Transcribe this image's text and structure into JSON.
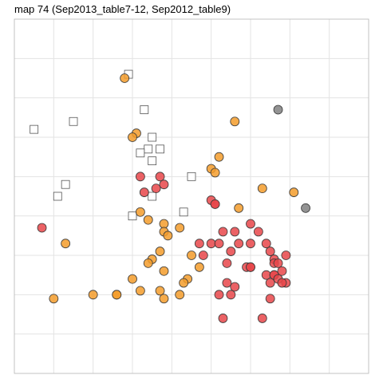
{
  "chart_data": {
    "type": "scatter",
    "title": "map 74 (Sep2013_table7-12, Sep2012_table9)",
    "xlabel": "",
    "ylabel": "",
    "xlim": [
      0,
      9
    ],
    "ylim": [
      0,
      9
    ],
    "grid": true,
    "legend": "none",
    "series": [
      {
        "marker": "square",
        "fill": "#ffffff",
        "stroke": "#555555",
        "points": [
          [
            2.9,
            7.6
          ],
          [
            1.5,
            6.4
          ],
          [
            3.3,
            6.7
          ],
          [
            0.5,
            6.2
          ],
          [
            3.5,
            6.0
          ],
          [
            3.4,
            5.7
          ],
          [
            3.2,
            5.6
          ],
          [
            3.7,
            5.7
          ],
          [
            3.5,
            5.4
          ],
          [
            4.5,
            5.0
          ],
          [
            1.3,
            4.8
          ],
          [
            1.1,
            4.5
          ],
          [
            3.5,
            4.5
          ],
          [
            4.3,
            4.1
          ],
          [
            3.0,
            4.0
          ]
        ]
      },
      {
        "marker": "circle",
        "fill": "#F39C2C",
        "stroke": "#3a3a3a",
        "points": [
          [
            2.8,
            7.5
          ],
          [
            5.6,
            6.4
          ],
          [
            3.1,
            6.1
          ],
          [
            3.0,
            6.0
          ],
          [
            5.2,
            5.5
          ],
          [
            5.0,
            5.2
          ],
          [
            5.1,
            5.1
          ],
          [
            6.3,
            4.7
          ],
          [
            7.1,
            4.6
          ],
          [
            5.7,
            4.2
          ],
          [
            3.2,
            4.1
          ],
          [
            3.4,
            3.9
          ],
          [
            3.8,
            3.8
          ],
          [
            4.2,
            3.7
          ],
          [
            3.8,
            3.6
          ],
          [
            3.9,
            3.5
          ],
          [
            1.3,
            3.3
          ],
          [
            3.7,
            3.1
          ],
          [
            4.5,
            3.0
          ],
          [
            3.5,
            2.9
          ],
          [
            3.4,
            2.8
          ],
          [
            4.7,
            2.7
          ],
          [
            3.8,
            2.6
          ],
          [
            4.4,
            2.4
          ],
          [
            4.3,
            2.3
          ],
          [
            3.0,
            2.4
          ],
          [
            3.2,
            2.1
          ],
          [
            3.7,
            2.1
          ],
          [
            2.6,
            2.0
          ],
          [
            2.6,
            2.0
          ],
          [
            2.0,
            2.0
          ],
          [
            3.8,
            1.9
          ],
          [
            4.2,
            2.0
          ],
          [
            1.0,
            1.9
          ]
        ]
      },
      {
        "marker": "circle",
        "fill": "#E8474A",
        "stroke": "#3a3a3a",
        "points": [
          [
            3.2,
            5.0
          ],
          [
            3.7,
            5.0
          ],
          [
            3.8,
            4.8
          ],
          [
            3.3,
            4.6
          ],
          [
            3.6,
            4.7
          ],
          [
            5.0,
            4.4
          ],
          [
            5.1,
            4.3
          ],
          [
            5.1,
            4.3
          ],
          [
            0.7,
            3.7
          ],
          [
            5.3,
            3.6
          ],
          [
            5.6,
            3.6
          ],
          [
            6.0,
            3.8
          ],
          [
            6.2,
            3.6
          ],
          [
            4.7,
            3.3
          ],
          [
            5.0,
            3.3
          ],
          [
            5.2,
            3.3
          ],
          [
            5.7,
            3.3
          ],
          [
            6.0,
            3.3
          ],
          [
            6.4,
            3.3
          ],
          [
            4.8,
            3.0
          ],
          [
            5.5,
            3.1
          ],
          [
            6.5,
            3.1
          ],
          [
            6.9,
            3.0
          ],
          [
            6.6,
            2.9
          ],
          [
            5.4,
            2.8
          ],
          [
            5.9,
            2.7
          ],
          [
            6.0,
            2.7
          ],
          [
            6.0,
            2.7
          ],
          [
            6.6,
            2.8
          ],
          [
            6.7,
            2.8
          ],
          [
            6.4,
            2.5
          ],
          [
            6.6,
            2.5
          ],
          [
            6.8,
            2.6
          ],
          [
            6.6,
            2.5
          ],
          [
            6.7,
            2.4
          ],
          [
            6.9,
            2.3
          ],
          [
            6.8,
            2.3
          ],
          [
            5.4,
            2.3
          ],
          [
            5.6,
            2.2
          ],
          [
            6.5,
            2.3
          ],
          [
            5.2,
            2.0
          ],
          [
            5.5,
            2.0
          ],
          [
            6.5,
            1.9
          ],
          [
            5.3,
            1.4
          ],
          [
            6.3,
            1.4
          ]
        ]
      },
      {
        "marker": "circle",
        "fill": "#808080",
        "stroke": "#3a3a3a",
        "points": [
          [
            6.7,
            6.7
          ],
          [
            7.4,
            4.2
          ]
        ]
      }
    ]
  }
}
